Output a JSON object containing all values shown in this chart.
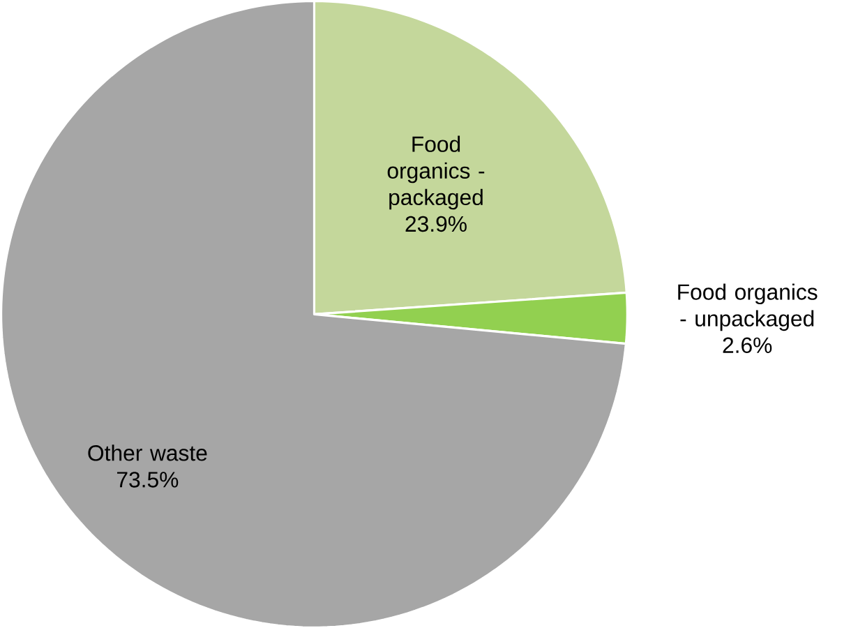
{
  "chart_data": {
    "type": "pie",
    "categories": [
      "Food organics - packaged",
      "Food organics - unpackaged",
      "Other waste"
    ],
    "values": [
      23.9,
      2.6,
      73.5
    ],
    "value_labels": [
      "23.9%",
      "2.6%",
      "73.5%"
    ],
    "colors": [
      "#c4d79b",
      "#92d050",
      "#a6a6a6"
    ]
  }
}
